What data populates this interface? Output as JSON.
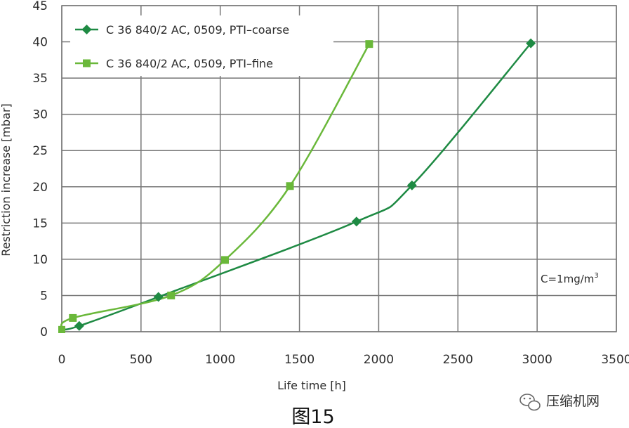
{
  "chart_data": {
    "type": "line",
    "xlabel": "Life time [h]",
    "ylabel": "Restriction increase [mbar]",
    "xlim": [
      0,
      3500
    ],
    "ylim": [
      0,
      45
    ],
    "xticks": [
      0,
      500,
      1000,
      1500,
      2000,
      2500,
      3000,
      3500
    ],
    "yticks": [
      0,
      5,
      10,
      15,
      20,
      25,
      30,
      35,
      40,
      45
    ],
    "grid": true,
    "legend_position": "top-left",
    "annotation_prefix": "C=1mg/m",
    "annotation_sup": "3",
    "series": [
      {
        "name": "C 36 840/2 AC, 0509, PTI–coarse",
        "marker": "diamond",
        "color": "#1e8a43",
        "x": [
          0,
          110,
          610,
          1860,
          2210,
          2960
        ],
        "y": [
          0.3,
          0.8,
          4.8,
          15.2,
          20.2,
          39.8
        ]
      },
      {
        "name": "C 36 840/2 AC, 0509, PTI–fine",
        "marker": "square",
        "color": "#6ab83a",
        "x": [
          0,
          70,
          690,
          1030,
          1440,
          1940
        ],
        "y": [
          0.3,
          1.9,
          5.0,
          9.9,
          20.1,
          39.7
        ]
      }
    ]
  },
  "caption": "图15",
  "watermark": "压缩机网"
}
